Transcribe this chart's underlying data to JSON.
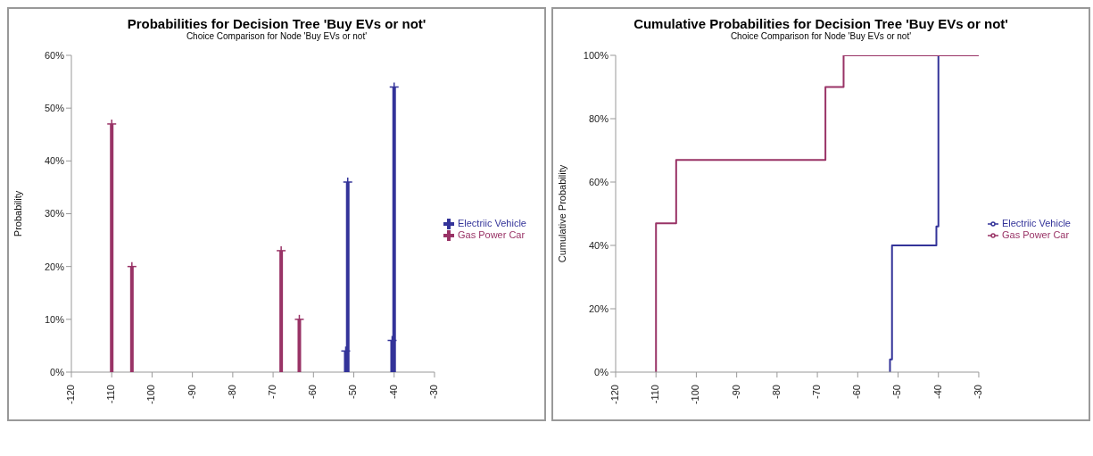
{
  "chart_data": [
    {
      "type": "lollipop",
      "title": "Probabilities for Decision Tree 'Buy EVs or not'",
      "subtitle": "Choice Comparison for Node 'Buy EVs or not'",
      "ylabel": "Probability",
      "series": [
        {
          "name": "Electriic Vehicle",
          "color": "#333399",
          "x": [
            -52,
            -51.5,
            -40.5,
            -40
          ],
          "values": [
            4,
            36,
            6,
            54
          ]
        },
        {
          "name": "Gas Power Car",
          "color": "#993366",
          "x": [
            -110,
            -105,
            -68,
            -63.5
          ],
          "values": [
            47,
            20,
            23,
            10
          ]
        }
      ],
      "xlim": [
        -120,
        -30
      ],
      "xticks": [
        -120,
        -110,
        -100,
        -90,
        -80,
        -70,
        -60,
        -50,
        -40,
        -30
      ],
      "ylim": [
        0,
        60
      ],
      "yticks": [
        {
          "value": 0,
          "label": "0%"
        },
        {
          "value": 10,
          "label": "10%"
        },
        {
          "value": 20,
          "label": "20%"
        },
        {
          "value": 30,
          "label": "30%"
        },
        {
          "value": 40,
          "label": "40%"
        },
        {
          "value": 50,
          "label": "50%"
        },
        {
          "value": 60,
          "label": "60%"
        }
      ],
      "marker": "cross",
      "legend": "right"
    },
    {
      "type": "step",
      "title": "Cumulative Probabilities for Decision Tree 'Buy EVs or not'",
      "subtitle": "Choice Comparison for Node 'Buy EVs or not'",
      "ylabel": "Cumulative Probability",
      "series": [
        {
          "name": "Electriic Vehicle",
          "color": "#333399",
          "x": [
            -52,
            -52,
            -51.5,
            -40.5,
            -40
          ],
          "values": [
            0,
            4,
            40,
            46,
            100
          ]
        },
        {
          "name": "Gas Power Car",
          "color": "#993366",
          "x": [
            -110,
            -110,
            -105,
            -68,
            -63.5,
            -30
          ],
          "values": [
            0,
            47,
            67,
            90,
            100,
            100
          ]
        }
      ],
      "xlim": [
        -120,
        -30
      ],
      "xticks": [
        -120,
        -110,
        -100,
        -90,
        -80,
        -70,
        -60,
        -50,
        -40,
        -30
      ],
      "ylim": [
        0,
        100
      ],
      "yticks": [
        {
          "value": 0,
          "label": "0%"
        },
        {
          "value": 20,
          "label": "20%"
        },
        {
          "value": 40,
          "label": "40%"
        },
        {
          "value": 60,
          "label": "60%"
        },
        {
          "value": 80,
          "label": "80%"
        },
        {
          "value": 100,
          "label": "100%"
        }
      ],
      "marker": "none",
      "legend": "right"
    }
  ]
}
